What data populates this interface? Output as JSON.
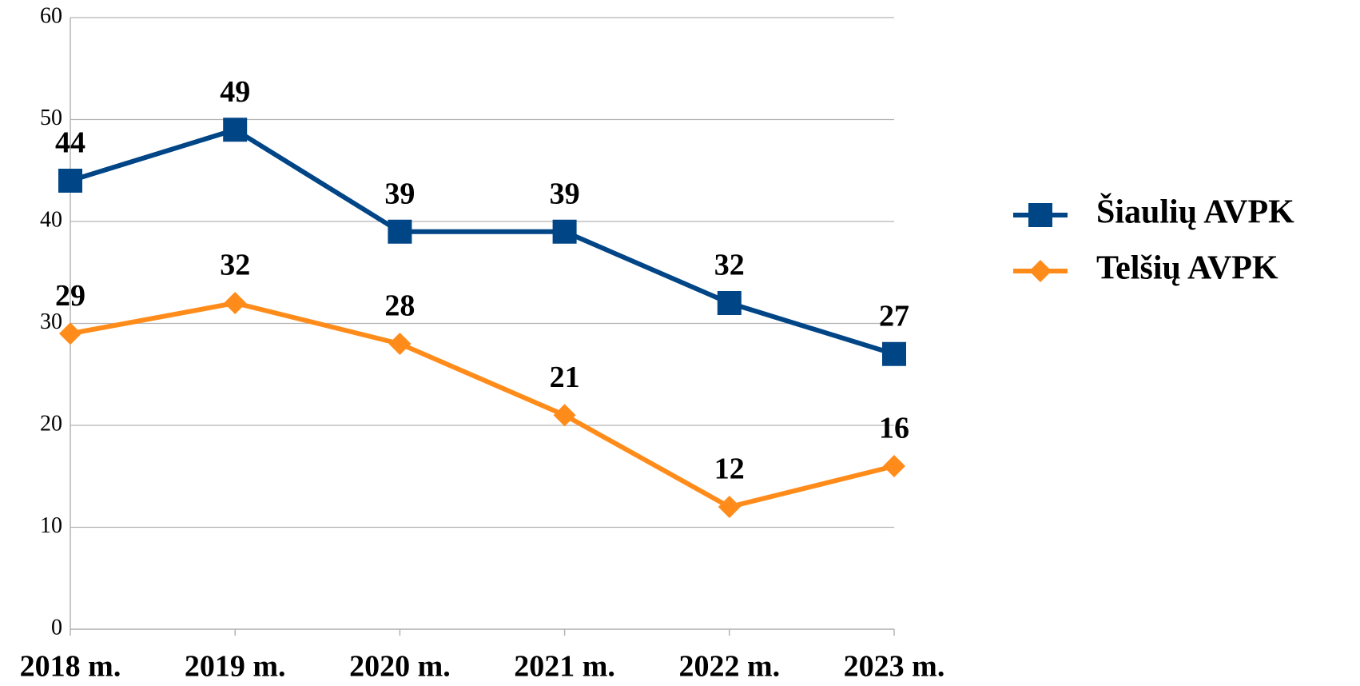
{
  "chart_data": {
    "type": "line",
    "categories": [
      "2018 m.",
      "2019 m.",
      "2020 m.",
      "2021 m.",
      "2022 m.",
      "2023 m."
    ],
    "series": [
      {
        "name": "Šiaulių AVPK",
        "color": "#004586",
        "marker": "square",
        "values": [
          44,
          49,
          39,
          39,
          32,
          27
        ]
      },
      {
        "name": "Telšių AVPK",
        "color": "#ff8c1a",
        "marker": "diamond",
        "values": [
          29,
          32,
          28,
          21,
          12,
          16
        ]
      }
    ],
    "ylim": [
      0,
      60
    ],
    "yticks": [
      0,
      10,
      20,
      30,
      40,
      50,
      60
    ],
    "grid": true,
    "legend": "right"
  }
}
